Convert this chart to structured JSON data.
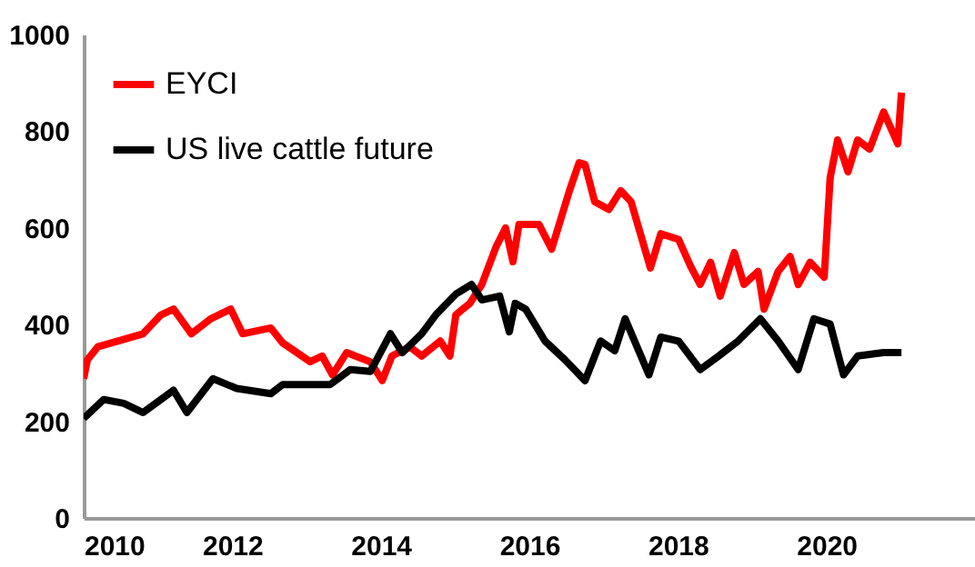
{
  "chart_data": {
    "type": "line",
    "xlim": [
      2010,
      2022
    ],
    "xticks": [
      2010,
      2012,
      2014,
      2016,
      2018,
      2020
    ],
    "ylim": [
      0,
      1000
    ],
    "yticks": [
      0,
      200,
      400,
      600,
      800,
      1000
    ],
    "grid": false,
    "legend": "top left",
    "line_style": "solid",
    "series": [
      {
        "name": "EYCI",
        "color": "#ff0000",
        "x": [
          2010.0,
          2010.05,
          2010.19,
          2010.46,
          2010.8,
          2011.04,
          2011.21,
          2011.45,
          2011.71,
          2011.98,
          2012.14,
          2012.52,
          2012.68,
          2013.05,
          2013.21,
          2013.35,
          2013.54,
          2013.86,
          2014.02,
          2014.15,
          2014.39,
          2014.55,
          2014.8,
          2014.93,
          2015.01,
          2015.2,
          2015.36,
          2015.55,
          2015.68,
          2015.78,
          2015.86,
          2016.13,
          2016.3,
          2016.54,
          2016.67,
          2016.75,
          2016.88,
          2017.07,
          2017.23,
          2017.37,
          2017.63,
          2017.77,
          2018.01,
          2018.17,
          2018.3,
          2018.44,
          2018.57,
          2018.76,
          2018.89,
          2019.08,
          2019.16,
          2019.35,
          2019.51,
          2019.62,
          2019.78,
          2019.97,
          2020.05,
          2020.15,
          2020.29,
          2020.42,
          2020.58,
          2020.77,
          2020.96,
          2021.01
        ],
        "values": [
          288,
          327,
          354,
          366,
          381,
          420,
          432,
          381,
          412,
          432,
          381,
          393,
          362,
          323,
          335,
          296,
          342,
          323,
          284,
          335,
          354,
          335,
          366,
          335,
          420,
          444,
          483,
          560,
          600,
          530,
          607,
          607,
          556,
          677,
          735,
          731,
          654,
          638,
          677,
          654,
          517,
          588,
          576,
          521,
          483,
          529,
          459,
          549,
          483,
          510,
          432,
          510,
          541,
          483,
          529,
          498,
          704,
          782,
          716,
          782,
          763,
          840,
          774,
          880
        ]
      },
      {
        "name": "US live cattle future",
        "color": "#000000",
        "x": [
          2010.0,
          2010.27,
          2010.54,
          2010.8,
          2011.21,
          2011.39,
          2011.74,
          2012.06,
          2012.52,
          2012.68,
          2013.32,
          2013.59,
          2013.86,
          2014.13,
          2014.29,
          2014.55,
          2014.74,
          2015.01,
          2015.22,
          2015.36,
          2015.6,
          2015.73,
          2015.81,
          2015.95,
          2016.21,
          2016.48,
          2016.75,
          2016.96,
          2017.15,
          2017.29,
          2017.61,
          2017.77,
          2018.01,
          2018.3,
          2018.55,
          2018.81,
          2019.11,
          2019.35,
          2019.62,
          2019.83,
          2020.05,
          2020.23,
          2020.42,
          2020.77,
          2021.01
        ],
        "values": [
          206,
          245,
          237,
          218,
          264,
          218,
          288,
          268,
          257,
          276,
          276,
          307,
          303,
          381,
          342,
          381,
          420,
          463,
          483,
          451,
          459,
          385,
          444,
          432,
          366,
          327,
          284,
          366,
          346,
          412,
          296,
          374,
          366,
          307,
          335,
          366,
          412,
          366,
          307,
          412,
          401,
          296,
          335,
          342,
          342
        ]
      }
    ]
  }
}
